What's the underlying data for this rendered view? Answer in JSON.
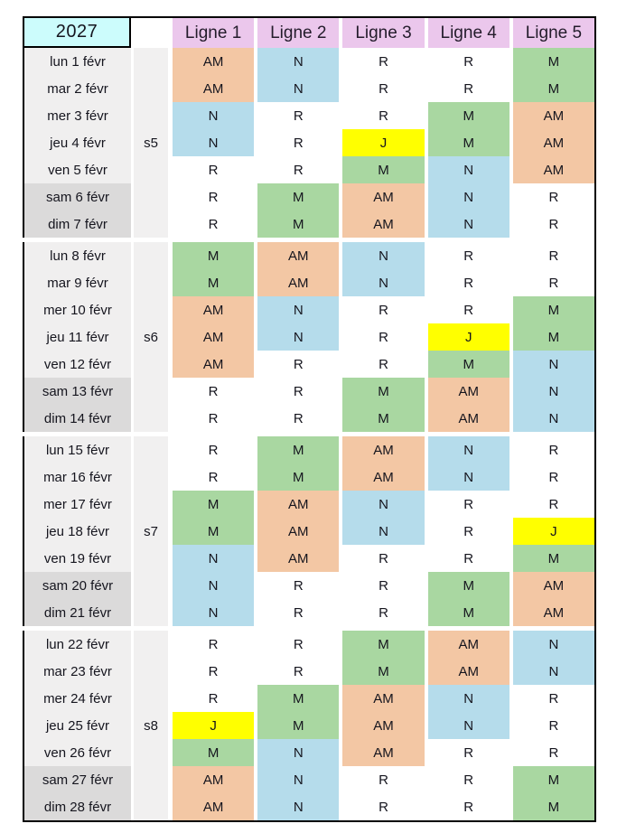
{
  "year": "2027",
  "columns": [
    "Ligne 1",
    "Ligne 2",
    "Ligne 3",
    "Ligne 4",
    "Ligne 5"
  ],
  "shift_codes": [
    "AM",
    "N",
    "M",
    "J",
    "R"
  ],
  "shift_colors": {
    "AM": "#F3C7A4",
    "N": "#B5DCEB",
    "M": "#A9D7A1",
    "J": "#FFFF00",
    "R": "#FFFFFF"
  },
  "palette": {
    "year_bg": "#CCFCFC",
    "header_bg": "#EBC7EC",
    "weekday_bg": "#F0EFEF",
    "weekend_bg": "#DBDADA",
    "week_col_bg": "#F1F0F0",
    "border": "#000000",
    "text": "#15151E"
  },
  "weeks": [
    {
      "label": "s5",
      "days": [
        {
          "date": "lun 1 févr",
          "weekend": false,
          "shifts": [
            "AM",
            "N",
            "R",
            "R",
            "M"
          ]
        },
        {
          "date": "mar 2 févr",
          "weekend": false,
          "shifts": [
            "AM",
            "N",
            "R",
            "R",
            "M"
          ]
        },
        {
          "date": "mer 3 févr",
          "weekend": false,
          "shifts": [
            "N",
            "R",
            "R",
            "M",
            "AM"
          ]
        },
        {
          "date": "jeu 4 févr",
          "weekend": false,
          "shifts": [
            "N",
            "R",
            "J",
            "M",
            "AM"
          ]
        },
        {
          "date": "ven 5 févr",
          "weekend": false,
          "shifts": [
            "R",
            "R",
            "M",
            "N",
            "AM"
          ]
        },
        {
          "date": "sam 6 févr",
          "weekend": true,
          "shifts": [
            "R",
            "M",
            "AM",
            "N",
            "R"
          ]
        },
        {
          "date": "dim 7 févr",
          "weekend": true,
          "shifts": [
            "R",
            "M",
            "AM",
            "N",
            "R"
          ]
        }
      ]
    },
    {
      "label": "s6",
      "days": [
        {
          "date": "lun 8 févr",
          "weekend": false,
          "shifts": [
            "M",
            "AM",
            "N",
            "R",
            "R"
          ]
        },
        {
          "date": "mar 9 févr",
          "weekend": false,
          "shifts": [
            "M",
            "AM",
            "N",
            "R",
            "R"
          ]
        },
        {
          "date": "mer 10 févr",
          "weekend": false,
          "shifts": [
            "AM",
            "N",
            "R",
            "R",
            "M"
          ]
        },
        {
          "date": "jeu 11 févr",
          "weekend": false,
          "shifts": [
            "AM",
            "N",
            "R",
            "J",
            "M"
          ]
        },
        {
          "date": "ven 12 févr",
          "weekend": false,
          "shifts": [
            "AM",
            "R",
            "R",
            "M",
            "N"
          ]
        },
        {
          "date": "sam 13 févr",
          "weekend": true,
          "shifts": [
            "R",
            "R",
            "M",
            "AM",
            "N"
          ]
        },
        {
          "date": "dim 14 févr",
          "weekend": true,
          "shifts": [
            "R",
            "R",
            "M",
            "AM",
            "N"
          ]
        }
      ]
    },
    {
      "label": "s7",
      "days": [
        {
          "date": "lun 15 févr",
          "weekend": false,
          "shifts": [
            "R",
            "M",
            "AM",
            "N",
            "R"
          ]
        },
        {
          "date": "mar 16 févr",
          "weekend": false,
          "shifts": [
            "R",
            "M",
            "AM",
            "N",
            "R"
          ]
        },
        {
          "date": "mer 17 févr",
          "weekend": false,
          "shifts": [
            "M",
            "AM",
            "N",
            "R",
            "R"
          ]
        },
        {
          "date": "jeu 18 févr",
          "weekend": false,
          "shifts": [
            "M",
            "AM",
            "N",
            "R",
            "J"
          ]
        },
        {
          "date": "ven 19 févr",
          "weekend": false,
          "shifts": [
            "N",
            "AM",
            "R",
            "R",
            "M"
          ]
        },
        {
          "date": "sam 20 févr",
          "weekend": true,
          "shifts": [
            "N",
            "R",
            "R",
            "M",
            "AM"
          ]
        },
        {
          "date": "dim 21 févr",
          "weekend": true,
          "shifts": [
            "N",
            "R",
            "R",
            "M",
            "AM"
          ]
        }
      ]
    },
    {
      "label": "s8",
      "days": [
        {
          "date": "lun 22 févr",
          "weekend": false,
          "shifts": [
            "R",
            "R",
            "M",
            "AM",
            "N"
          ]
        },
        {
          "date": "mar 23 févr",
          "weekend": false,
          "shifts": [
            "R",
            "R",
            "M",
            "AM",
            "N"
          ]
        },
        {
          "date": "mer 24 févr",
          "weekend": false,
          "shifts": [
            "R",
            "M",
            "AM",
            "N",
            "R"
          ]
        },
        {
          "date": "jeu 25 févr",
          "weekend": false,
          "shifts": [
            "J",
            "M",
            "AM",
            "N",
            "R"
          ]
        },
        {
          "date": "ven 26 févr",
          "weekend": false,
          "shifts": [
            "M",
            "N",
            "AM",
            "R",
            "R"
          ]
        },
        {
          "date": "sam 27 févr",
          "weekend": true,
          "shifts": [
            "AM",
            "N",
            "R",
            "R",
            "M"
          ]
        },
        {
          "date": "dim 28 févr",
          "weekend": true,
          "shifts": [
            "AM",
            "N",
            "R",
            "R",
            "M"
          ]
        }
      ]
    }
  ]
}
